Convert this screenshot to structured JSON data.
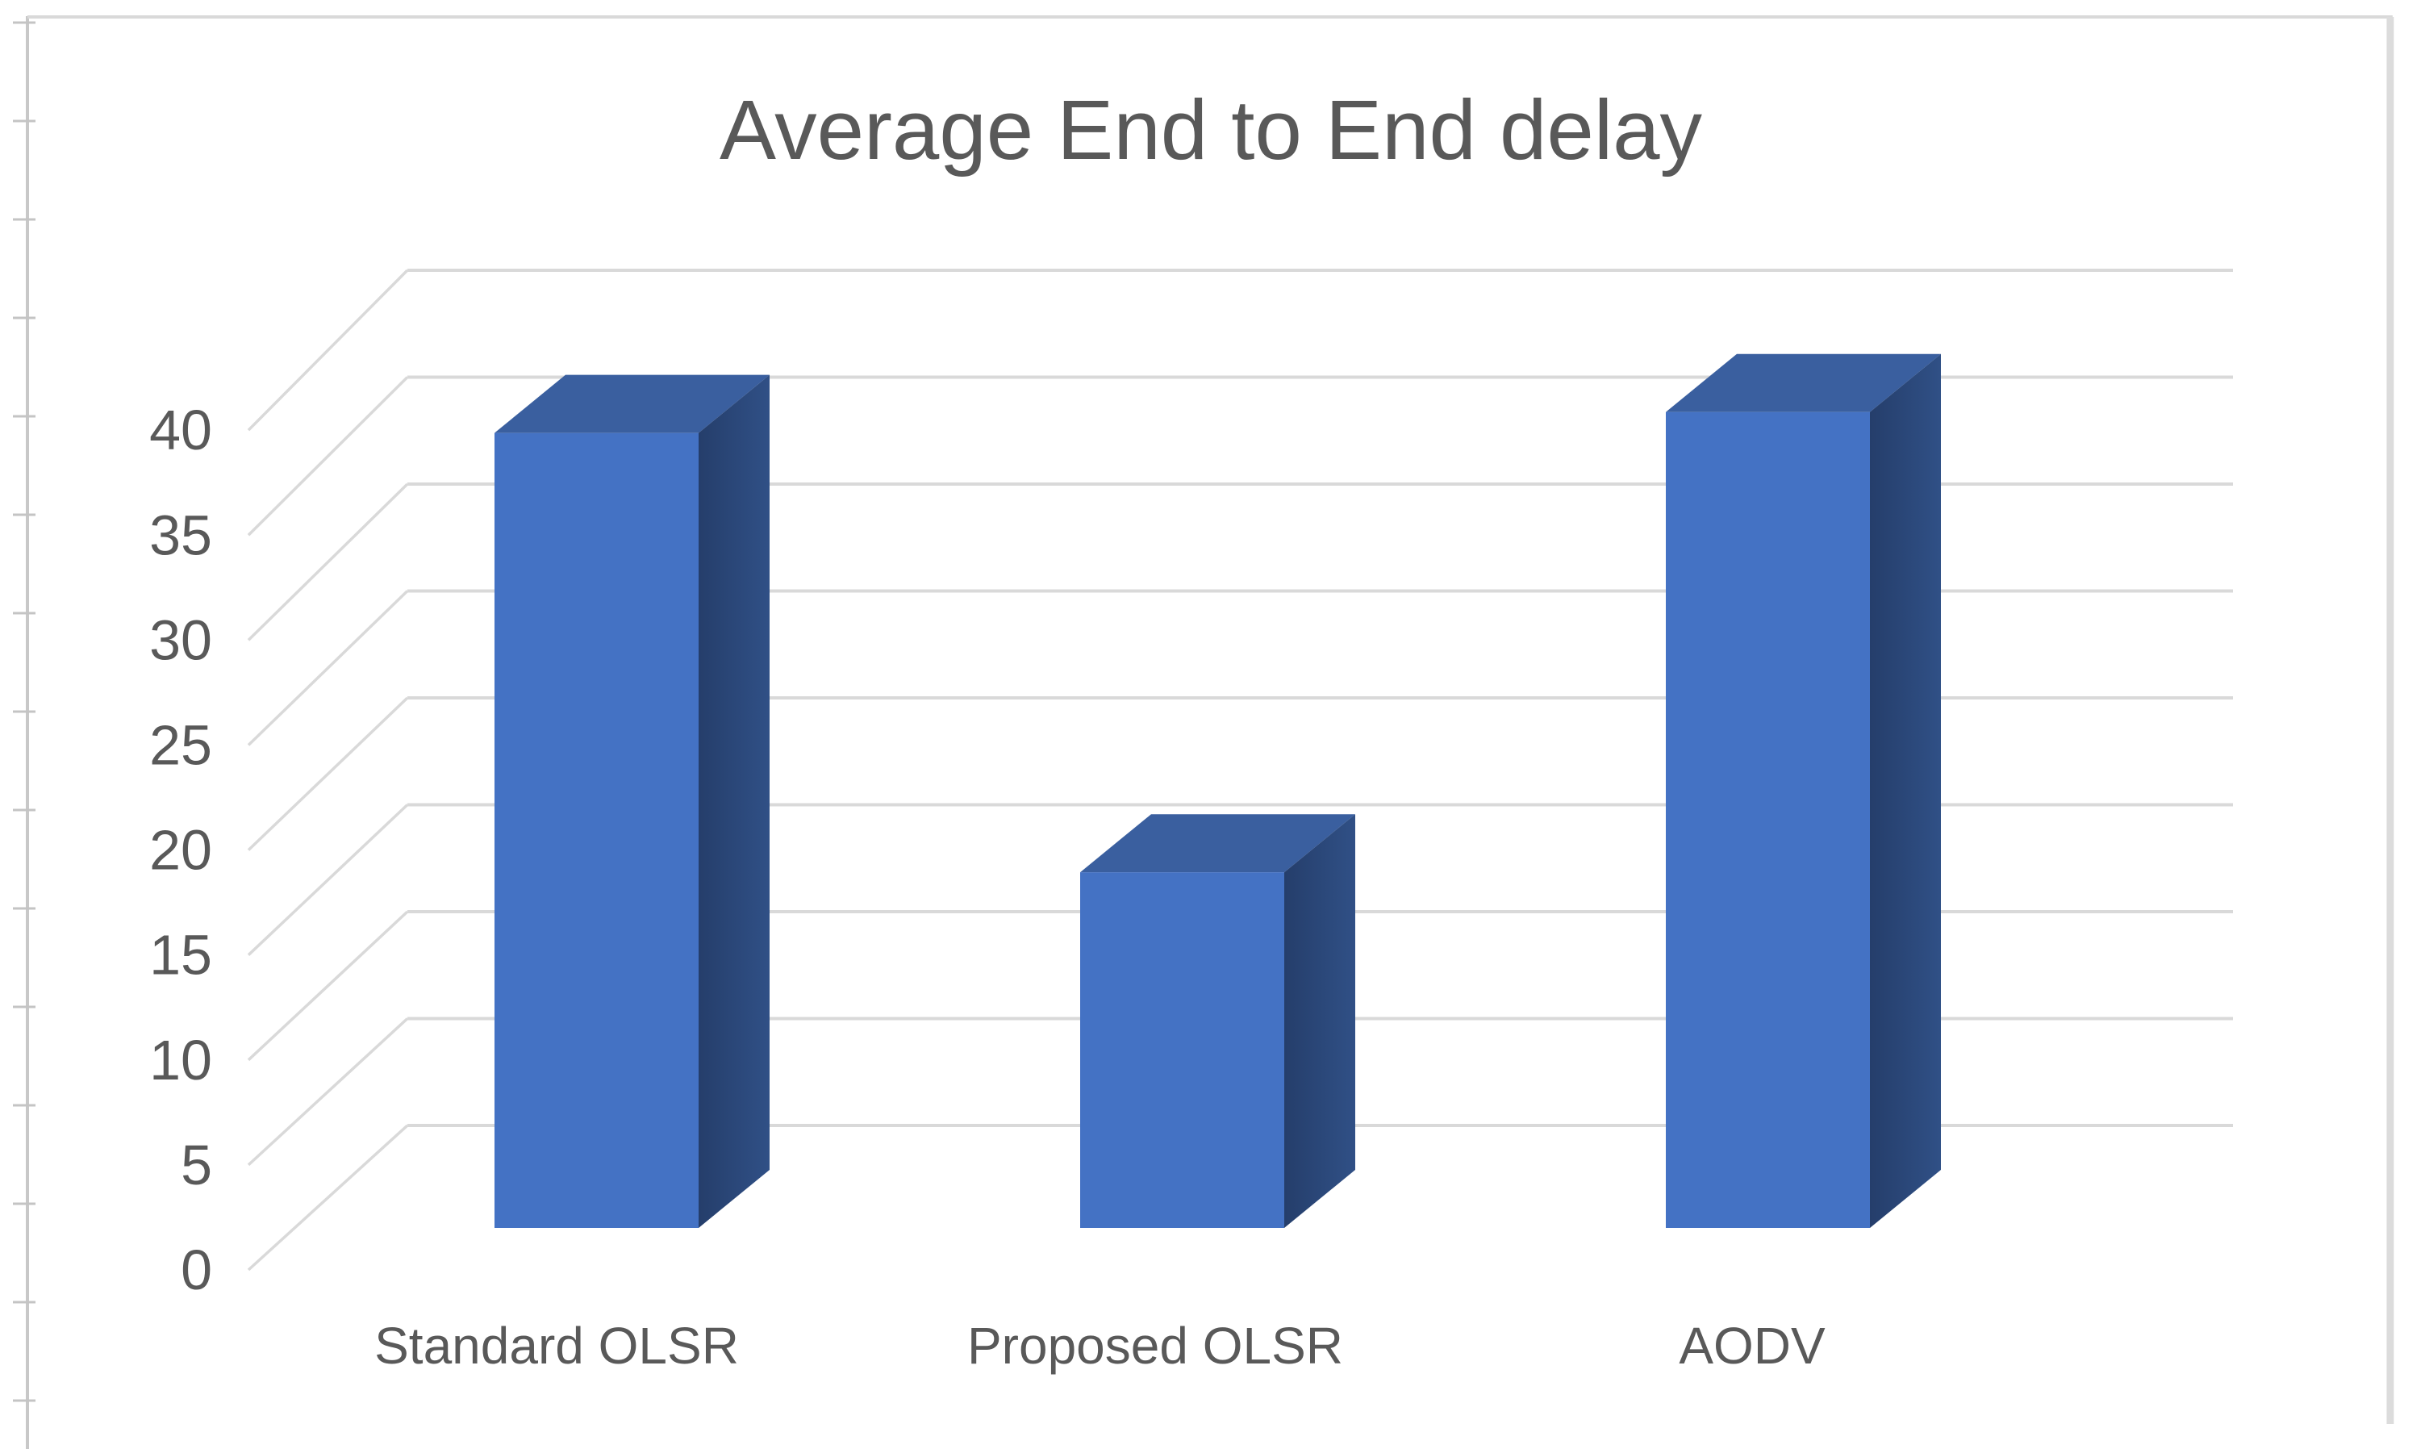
{
  "figure": {
    "kind": "excel-3d-bar-chart-screenshot"
  },
  "chart_data": {
    "type": "bar",
    "projection": "3d",
    "title": "Average End to End delay",
    "categories": [
      "Standard OLSR",
      "Proposed OLSR",
      "AODV"
    ],
    "values": [
      38,
      17,
      39
    ],
    "series": [
      {
        "name": "Average End to End delay",
        "values": [
          38,
          17,
          39
        ]
      }
    ],
    "xlabel": "",
    "ylabel": "",
    "ylim": [
      0,
      40
    ],
    "yticks": [
      0,
      5,
      10,
      15,
      20,
      25,
      30,
      35,
      40
    ],
    "grid": true,
    "legend": false
  },
  "y_axis_labels": [
    "40",
    "35",
    "30",
    "25",
    "20",
    "15",
    "10",
    "5",
    "0"
  ],
  "colors": {
    "background": "#ffffff",
    "bar_front": "#4472c4",
    "bar_top": "#3a5f9f",
    "bar_side_dark": "#253e6b",
    "bar_side_light": "#305086",
    "gridline": "#d9d9d9",
    "depth_line": "#d9d9d9",
    "axis_line": "#c8c8c8",
    "axis_tick": "#c4c4c4",
    "border_top": "#d9d9d9",
    "border_right": "#dcdcdc",
    "text": "#595959"
  }
}
